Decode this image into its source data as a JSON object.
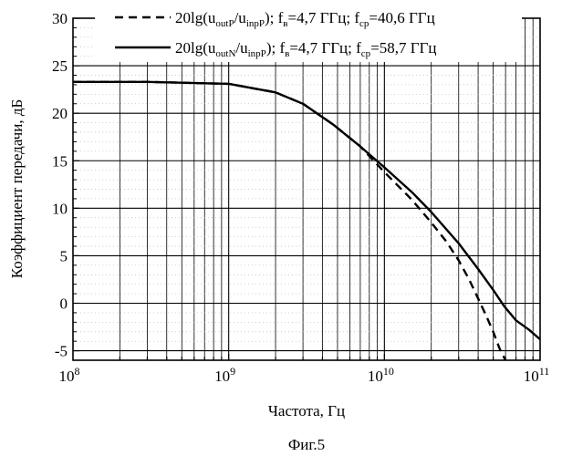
{
  "chart_data": {
    "type": "line",
    "title": "",
    "xlabel": "Частота, Гц",
    "ylabel": "Коэффициент передачи, дБ",
    "xscale": "log",
    "xlim": [
      100000000,
      100000000000
    ],
    "ylim": [
      -6,
      30
    ],
    "x_ticks": [
      {
        "value": 100000000,
        "base": "10",
        "exp": "8"
      },
      {
        "value": 1000000000,
        "base": "10",
        "exp": "9"
      },
      {
        "value": 10000000000,
        "base": "10",
        "exp": "10"
      },
      {
        "value": 100000000000,
        "base": "10",
        "exp": "11"
      }
    ],
    "y_ticks": [
      30,
      25,
      20,
      15,
      10,
      5,
      0,
      -5
    ],
    "grid": true,
    "legend": {
      "position": "top",
      "entries": [
        {
          "style": "dashed",
          "prefix": "20lg(u",
          "s1": "outP",
          "mid": "/u",
          "s2": "inpP",
          "after": "); f",
          "s3": "в",
          "f1": "=4,7 ГГц; f",
          "s4": "ср",
          "f2": "=40,6 ГГц"
        },
        {
          "style": "solid",
          "prefix": "20lg(u",
          "s1": "outN",
          "mid": "/u",
          "s2": "inpP",
          "after": "); f",
          "s3": "в",
          "f1": "=4,7 ГГц; f",
          "s4": "ср",
          "f2": "=58,7 ГГц"
        }
      ]
    },
    "series": [
      {
        "name": "20lg(uoutP/uinpP); fв=4,7 ГГц; fср=40,6 ГГц",
        "style": "dashed",
        "x": [
          100000000,
          300000000,
          1000000000,
          2000000000,
          3000000000,
          4700000000,
          7000000000,
          10000000000,
          15000000000,
          20000000000,
          25000000000,
          30000000000,
          35000000000,
          40000000000,
          45000000000,
          50000000000,
          55000000000,
          60000000000
        ],
        "y": [
          23.3,
          23.3,
          23.1,
          22.2,
          21.0,
          18.8,
          16.5,
          13.8,
          10.9,
          8.5,
          6.5,
          4.5,
          2.5,
          0.5,
          -1.3,
          -3.0,
          -4.8,
          -6.0
        ]
      },
      {
        "name": "20lg(uoutN/uinpP); fв=4,7 ГГц; fср=58,7 ГГц",
        "style": "solid",
        "x": [
          100000000,
          300000000,
          1000000000,
          2000000000,
          3000000000,
          4700000000,
          7000000000,
          10000000000,
          15000000000,
          20000000000,
          30000000000,
          40000000000,
          50000000000,
          58700000000,
          70000000000,
          85000000000,
          100000000000
        ],
        "y": [
          23.3,
          23.3,
          23.1,
          22.2,
          21.0,
          18.8,
          16.5,
          14.3,
          11.7,
          9.6,
          6.3,
          3.6,
          1.4,
          -0.3,
          -1.8,
          -2.8,
          -3.8
        ]
      }
    ]
  },
  "caption": "Фиг.5"
}
